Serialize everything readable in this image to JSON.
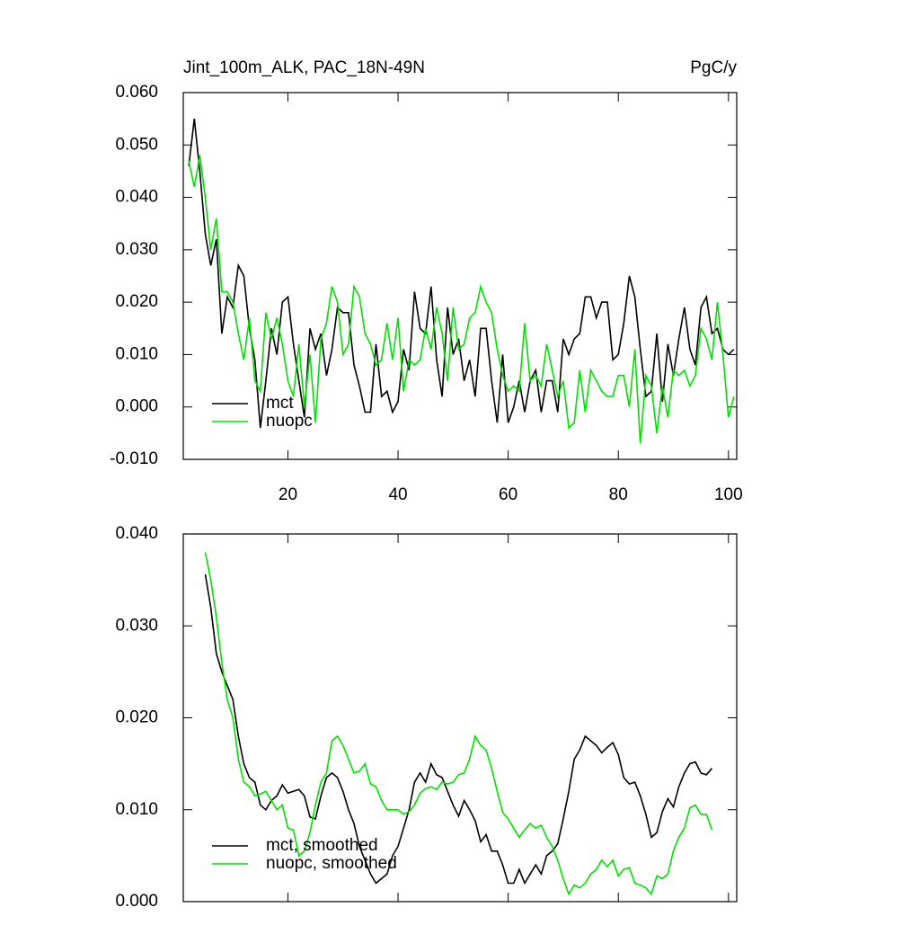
{
  "chart_data": [
    {
      "type": "line",
      "title": "Jint_100m_ALK, PAC_18N-49N",
      "units_label": "PgC/y",
      "x": [
        2,
        3,
        4,
        5,
        6,
        7,
        8,
        9,
        10,
        11,
        12,
        13,
        14,
        15,
        16,
        17,
        18,
        19,
        20,
        21,
        22,
        23,
        24,
        25,
        26,
        27,
        28,
        29,
        30,
        31,
        32,
        33,
        34,
        35,
        36,
        37,
        38,
        39,
        40,
        41,
        42,
        43,
        44,
        45,
        46,
        47,
        48,
        49,
        50,
        51,
        52,
        53,
        54,
        55,
        56,
        57,
        58,
        59,
        60,
        61,
        62,
        63,
        64,
        65,
        66,
        67,
        68,
        69,
        70,
        71,
        72,
        73,
        74,
        75,
        76,
        77,
        78,
        79,
        80,
        81,
        82,
        83,
        84,
        85,
        86,
        87,
        88,
        89,
        90,
        91,
        92,
        93,
        94,
        95,
        96,
        97,
        98,
        99,
        100,
        101
      ],
      "series": [
        {
          "name": "mct",
          "color": "#000000",
          "values": [
            0.046,
            0.055,
            0.045,
            0.033,
            0.027,
            0.032,
            0.014,
            0.021,
            0.019,
            0.027,
            0.025,
            0.015,
            0.009,
            -0.004,
            0.005,
            0.015,
            0.01,
            0.02,
            0.021,
            0.012,
            0.005,
            -0.002,
            0.015,
            0.011,
            0.014,
            0.006,
            0.011,
            0.019,
            0.018,
            0.018,
            0.008,
            0.004,
            -0.001,
            -0.001,
            0.012,
            0.002,
            0.003,
            -0.001,
            0.001,
            0.011,
            0.007,
            0.022,
            0.015,
            0.014,
            0.023,
            0.009,
            0.002,
            0.019,
            0.01,
            0.013,
            0.005,
            0.009,
            0.002,
            0.015,
            0.015,
            0.005,
            -0.003,
            0.01,
            -0.003,
            0.0,
            0.005,
            -0.001,
            0.005,
            0.007,
            -0.001,
            0.005,
            0.005,
            -0.001,
            0.013,
            0.01,
            0.013,
            0.014,
            0.021,
            0.021,
            0.017,
            0.02,
            0.02,
            0.009,
            0.01,
            0.016,
            0.025,
            0.021,
            0.011,
            0.002,
            0.003,
            0.014,
            0.001,
            0.012,
            0.006,
            0.013,
            0.019,
            0.011,
            0.008,
            0.019,
            0.021,
            0.014,
            0.015,
            0.011,
            0.01,
            0.011
          ]
        },
        {
          "name": "nuopc",
          "color": "#00e000",
          "values": [
            0.047,
            0.042,
            0.048,
            0.04,
            0.03,
            0.036,
            0.022,
            0.022,
            0.02,
            0.014,
            0.009,
            0.017,
            0.005,
            0.003,
            0.018,
            0.013,
            0.017,
            0.012,
            0.005,
            0.002,
            0.012,
            0.0,
            0.01,
            -0.003,
            0.013,
            0.016,
            0.023,
            0.02,
            0.01,
            0.012,
            0.023,
            0.021,
            0.014,
            0.012,
            0.008,
            0.009,
            0.016,
            0.009,
            0.017,
            0.003,
            0.009,
            0.008,
            0.009,
            0.015,
            0.011,
            0.019,
            0.014,
            0.005,
            0.019,
            0.011,
            0.012,
            0.017,
            0.018,
            0.023,
            0.02,
            0.018,
            0.011,
            0.006,
            0.003,
            0.004,
            0.003,
            0.016,
            0.005,
            0.006,
            0.004,
            0.012,
            0.007,
            0.002,
            0.005,
            -0.004,
            -0.003,
            0.007,
            -0.001,
            0.007,
            0.005,
            0.003,
            0.002,
            0.002,
            0.006,
            0.006,
            0.0,
            0.011,
            -0.007,
            0.006,
            0.004,
            -0.005,
            0.004,
            -0.002,
            0.007,
            0.006,
            0.007,
            0.004,
            0.006,
            0.015,
            0.013,
            0.009,
            0.02,
            0.01,
            -0.002,
            0.002
          ]
        }
      ],
      "xlim": [
        1,
        101.5
      ],
      "xticks": [
        20,
        40,
        60,
        80,
        100
      ],
      "ylim": [
        -0.01,
        0.06
      ],
      "yticks": [
        {
          "value": -0.01,
          "label": "-0.010"
        },
        {
          "value": 0,
          "label": "0.000"
        },
        {
          "value": 0.01,
          "label": "0.010"
        },
        {
          "value": 0.02,
          "label": "0.020"
        },
        {
          "value": 0.03,
          "label": "0.030"
        },
        {
          "value": 0.04,
          "label": "0.040"
        },
        {
          "value": 0.05,
          "label": "0.050"
        },
        {
          "value": 0.06,
          "label": "0.060"
        }
      ],
      "legend": "lower left"
    },
    {
      "type": "line",
      "x": [
        5,
        6,
        7,
        8,
        9,
        10,
        11,
        12,
        13,
        14,
        15,
        16,
        17,
        18,
        19,
        20,
        21,
        22,
        23,
        24,
        25,
        26,
        27,
        28,
        29,
        30,
        31,
        32,
        33,
        34,
        35,
        36,
        37,
        38,
        39,
        40,
        41,
        42,
        43,
        44,
        45,
        46,
        47,
        48,
        49,
        50,
        51,
        52,
        53,
        54,
        55,
        56,
        57,
        58,
        59,
        60,
        61,
        62,
        63,
        64,
        65,
        66,
        67,
        68,
        69,
        70,
        71,
        72,
        73,
        74,
        75,
        76,
        77,
        78,
        79,
        80,
        81,
        82,
        83,
        84,
        85,
        86,
        87,
        88,
        89,
        90,
        91,
        92,
        93,
        94,
        95,
        96,
        97
      ],
      "series": [
        {
          "name": "mct, smoothed",
          "color": "#000000",
          "values": [
            0.0356,
            0.032,
            0.027,
            0.025,
            0.0235,
            0.022,
            0.018,
            0.015,
            0.0135,
            0.013,
            0.0105,
            0.01,
            0.011,
            0.0115,
            0.0127,
            0.0118,
            0.012,
            0.0122,
            0.0115,
            0.0092,
            0.009,
            0.0115,
            0.0135,
            0.014,
            0.0135,
            0.012,
            0.01,
            0.0085,
            0.006,
            0.0045,
            0.003,
            0.002,
            0.0025,
            0.003,
            0.005,
            0.006,
            0.008,
            0.01,
            0.013,
            0.014,
            0.013,
            0.015,
            0.0138,
            0.0135,
            0.012,
            0.0105,
            0.0093,
            0.011,
            0.01,
            0.0088,
            0.0065,
            0.0073,
            0.0055,
            0.0055,
            0.004,
            0.002,
            0.002,
            0.0035,
            0.002,
            0.003,
            0.004,
            0.003,
            0.005,
            0.0055,
            0.0063,
            0.009,
            0.012,
            0.0155,
            0.0165,
            0.018,
            0.0175,
            0.017,
            0.0162,
            0.0168,
            0.0173,
            0.016,
            0.0135,
            0.0128,
            0.013,
            0.0115,
            0.0095,
            0.007,
            0.0075,
            0.0098,
            0.0112,
            0.0103,
            0.0125,
            0.014,
            0.015,
            0.0152,
            0.014,
            0.0138,
            0.0145
          ]
        },
        {
          "name": "nuopc, smoothed",
          "color": "#00e000",
          "values": [
            0.038,
            0.035,
            0.031,
            0.026,
            0.022,
            0.02,
            0.0155,
            0.013,
            0.0125,
            0.0115,
            0.0117,
            0.012,
            0.011,
            0.01,
            0.0105,
            0.008,
            0.0078,
            0.005,
            0.0055,
            0.0075,
            0.0105,
            0.013,
            0.014,
            0.0175,
            0.018,
            0.017,
            0.0155,
            0.014,
            0.0142,
            0.015,
            0.0128,
            0.0125,
            0.011,
            0.01,
            0.01,
            0.01,
            0.0095,
            0.0098,
            0.0105,
            0.0118,
            0.0123,
            0.0125,
            0.0122,
            0.013,
            0.0128,
            0.013,
            0.0138,
            0.014,
            0.0155,
            0.018,
            0.017,
            0.0165,
            0.0145,
            0.012,
            0.0097,
            0.009,
            0.008,
            0.007,
            0.0078,
            0.0085,
            0.008,
            0.0083,
            0.007,
            0.006,
            0.0045,
            0.0025,
            0.0008,
            0.0018,
            0.0015,
            0.002,
            0.003,
            0.0035,
            0.0045,
            0.0038,
            0.0045,
            0.0028,
            0.0035,
            0.0037,
            0.002,
            0.0018,
            0.0015,
            0.0008,
            0.0028,
            0.0025,
            0.003,
            0.0055,
            0.007,
            0.008,
            0.0102,
            0.0105,
            0.0095,
            0.0095,
            0.0078
          ]
        }
      ],
      "xlim": [
        1,
        101.5
      ],
      "xticks": [
        20,
        40,
        60,
        80,
        100
      ],
      "ylim": [
        0,
        0.04
      ],
      "yticks": [
        {
          "value": 0,
          "label": "0.000"
        },
        {
          "value": 0.01,
          "label": "0.010"
        },
        {
          "value": 0.02,
          "label": "0.020"
        },
        {
          "value": 0.03,
          "label": "0.030"
        },
        {
          "value": 0.04,
          "label": "0.040"
        }
      ],
      "legend": "lower left"
    }
  ]
}
